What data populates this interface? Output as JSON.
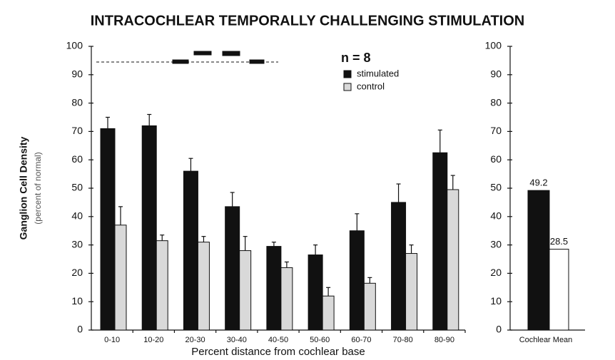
{
  "chart_data": [
    {
      "type": "bar",
      "title": "INTRACOCHLEAR TEMPORALLY CHALLENGING STIMULATION",
      "ylabel": "Ganglion Cell Density",
      "ylabel_note": "(percent of normal)",
      "xlabel": "Percent distance from cochlear base",
      "annotation": "n = 8",
      "categories": [
        "0-10",
        "10-20",
        "20-30",
        "30-40",
        "40-50",
        "50-60",
        "60-70",
        "70-80",
        "80-90"
      ],
      "series": [
        {
          "name": "stimulated",
          "color": "#111111",
          "values": [
            71,
            72,
            56,
            43.5,
            29.5,
            26.5,
            35,
            45,
            62.5
          ],
          "errors": [
            4,
            4,
            4.5,
            5,
            1.5,
            3.5,
            6,
            6.5,
            8
          ]
        },
        {
          "name": "control",
          "color": "#d9d9d9",
          "values": [
            37,
            31.5,
            31,
            28,
            22,
            12,
            16.5,
            27,
            49.5
          ],
          "errors": [
            6.5,
            2,
            2,
            5,
            2,
            3,
            2,
            3,
            5
          ]
        }
      ],
      "ylim": [
        0,
        100
      ],
      "yticks": [
        0,
        10,
        20,
        30,
        40,
        50,
        60,
        70,
        80,
        90,
        100
      ],
      "legend": "top-right"
    },
    {
      "type": "bar",
      "categories": [
        "Cochlear Mean"
      ],
      "series": [
        {
          "color": "#111111",
          "values": [
            49.2
          ]
        },
        {
          "color": "#ffffff",
          "values": [
            28.5
          ]
        }
      ],
      "ylim": [
        0,
        100
      ],
      "yticks": [
        0,
        10,
        20,
        30,
        40,
        50,
        60,
        70,
        80,
        90,
        100
      ]
    }
  ]
}
